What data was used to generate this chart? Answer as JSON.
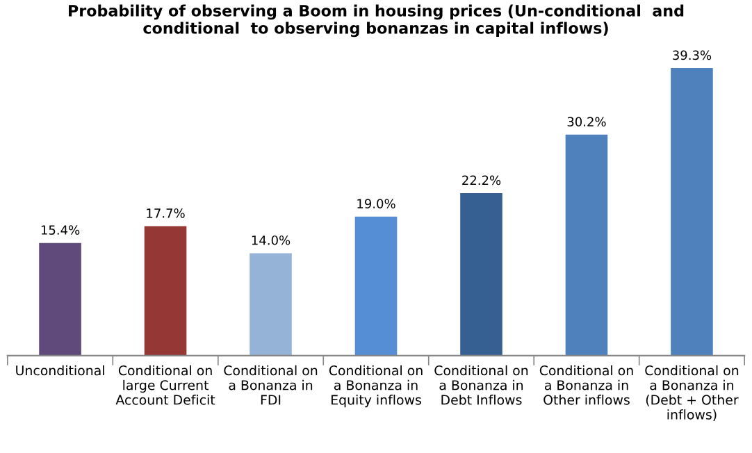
{
  "chart_data": {
    "type": "bar",
    "title": "Probability of observing a Boom in housing prices (Un-conditional  and\nconditional  to observing bonanzas in capital inflows)",
    "categories": [
      "Unconditional",
      "Conditional on\nlarge Current\nAccount Deficit",
      "Conditional on\na Bonanza in\nFDI",
      "Conditional on\na Bonanza in\nEquity inflows",
      "Conditional on\na Bonanza in\nDebt Inflows",
      "Conditional on\na Bonanza in\nOther inflows",
      "Conditional on\na Bonanza in\n(Debt + Other\ninflows)"
    ],
    "values": [
      15.4,
      17.7,
      14.0,
      19.0,
      22.2,
      30.2,
      39.3
    ],
    "value_labels": [
      "15.4%",
      "17.7%",
      "14.0%",
      "19.0%",
      "22.2%",
      "30.2%",
      "39.3%"
    ],
    "colors": [
      "#604a7b",
      "#953735",
      "#95b3d7",
      "#558ed5",
      "#376092",
      "#4f81bd",
      "#4f81bd"
    ],
    "grid": false,
    "legend": false
  }
}
